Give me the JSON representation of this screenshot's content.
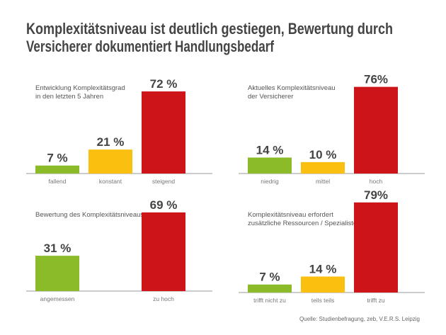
{
  "title_lines": [
    "Komplexitätsniveau ist deutlich gestiegen, Bewertung durch",
    "Versicherer dokumentiert Handlungsbedarf"
  ],
  "source": "Quelle: Studienbefragung, zeb, V.E.R.S. Leipzig",
  "colors": {
    "green": "#8cbb2a",
    "yellow": "#fbbf10",
    "red": "#cc1419",
    "axis": "#999999"
  },
  "chart_data": [
    {
      "type": "bar",
      "title_lines": [
        "Entwicklung Komplexitätsgrad",
        "in den letzten 5 Jahren"
      ],
      "categories": [
        "fallend",
        "konstant",
        "steigend"
      ],
      "values": [
        7,
        21,
        72
      ],
      "labels": [
        "7 %",
        "21 %",
        "72 %"
      ],
      "bar_colors": [
        "green",
        "yellow",
        "red"
      ],
      "unit": "%",
      "ylim": [
        0,
        100
      ]
    },
    {
      "type": "bar",
      "title_lines": [
        "Aktuelles Komplexitätsniveau",
        "der Versicherer"
      ],
      "categories": [
        "niedrig",
        "mittel",
        "hoch"
      ],
      "values": [
        14,
        10,
        76
      ],
      "labels": [
        "14 %",
        "10 %",
        "76%"
      ],
      "bar_colors": [
        "green",
        "yellow",
        "red"
      ],
      "unit": "%",
      "ylim": [
        0,
        100
      ]
    },
    {
      "type": "bar",
      "title_lines": [
        "Bewertung des Komplexitätsniveaus"
      ],
      "categories": [
        "angemessen",
        "",
        "zu hoch"
      ],
      "values": [
        31,
        null,
        69
      ],
      "labels": [
        "31 %",
        "",
        "69 %"
      ],
      "bar_colors": [
        "green",
        "yellow",
        "red"
      ],
      "unit": "%",
      "ylim": [
        0,
        100
      ]
    },
    {
      "type": "bar",
      "title_lines": [
        "Komplexitätsniveau erfordert",
        "zusätzliche Ressourcen / Spezialisten"
      ],
      "categories": [
        "trifft nicht zu",
        "teils teils",
        "trifft zu"
      ],
      "values": [
        7,
        14,
        79
      ],
      "labels": [
        "7 %",
        "14 %",
        "79%"
      ],
      "bar_colors": [
        "green",
        "yellow",
        "red"
      ],
      "unit": "%",
      "ylim": [
        0,
        100
      ]
    }
  ]
}
